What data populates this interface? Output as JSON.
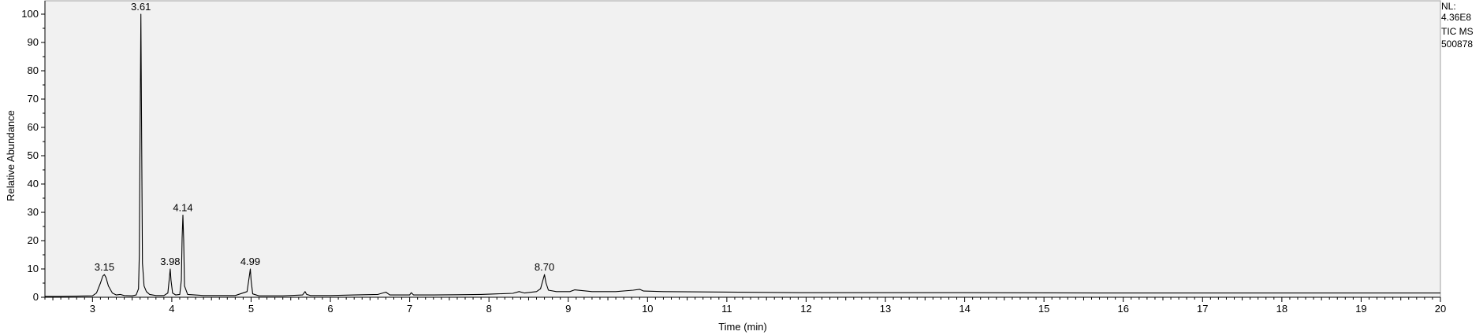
{
  "chart_data": {
    "type": "line",
    "title": "",
    "xlabel": "Time (min)",
    "ylabel": "Relative Abundance",
    "xlim": [
      2.4,
      20
    ],
    "ylim": [
      0,
      100
    ],
    "x_ticks": [
      3,
      4,
      5,
      6,
      7,
      8,
      9,
      10,
      11,
      12,
      13,
      14,
      15,
      16,
      17,
      18,
      19,
      20
    ],
    "x_tick_labels": [
      "3",
      "4",
      "5",
      "6",
      "7",
      "8",
      "9",
      "10",
      "11",
      "12",
      "13",
      "14",
      "15",
      "16",
      "17",
      "18",
      "19",
      "20"
    ],
    "y_ticks": [
      0,
      10,
      20,
      30,
      40,
      50,
      60,
      70,
      80,
      90,
      100
    ],
    "y_tick_labels": [
      "0",
      "10",
      "20",
      "30",
      "40",
      "50",
      "60",
      "70",
      "80",
      "90",
      "100"
    ],
    "info": {
      "nl_label": "NL:",
      "nl_value": "4.36E8",
      "trace_label": "TIC  MS",
      "sample_id": "500878"
    },
    "peaks": [
      {
        "label": "3.15",
        "x": 3.15,
        "y": 8
      },
      {
        "label": "3.61",
        "x": 3.61,
        "y": 100
      },
      {
        "label": "3.98",
        "x": 3.98,
        "y": 10
      },
      {
        "label": "4.14",
        "x": 4.14,
        "y": 29
      },
      {
        "label": "4.99",
        "x": 4.99,
        "y": 10
      },
      {
        "label": "8.70",
        "x": 8.7,
        "y": 8
      }
    ],
    "series": [
      {
        "name": "TIC MS",
        "x": [
          2.4,
          2.6,
          2.8,
          3.0,
          3.05,
          3.1,
          3.13,
          3.15,
          3.17,
          3.2,
          3.25,
          3.3,
          3.35,
          3.4,
          3.5,
          3.55,
          3.58,
          3.59,
          3.6,
          3.61,
          3.62,
          3.63,
          3.65,
          3.68,
          3.72,
          3.8,
          3.9,
          3.95,
          3.97,
          3.98,
          3.99,
          4.01,
          4.05,
          4.1,
          4.12,
          4.13,
          4.14,
          4.15,
          4.16,
          4.2,
          4.4,
          4.6,
          4.8,
          4.95,
          4.98,
          4.99,
          5.0,
          5.02,
          5.1,
          5.4,
          5.65,
          5.68,
          5.7,
          5.75,
          6.0,
          6.3,
          6.6,
          6.7,
          6.75,
          7.0,
          7.02,
          7.05,
          7.3,
          7.6,
          7.9,
          8.1,
          8.3,
          8.38,
          8.45,
          8.6,
          8.65,
          8.68,
          8.7,
          8.72,
          8.75,
          8.85,
          9.02,
          9.08,
          9.3,
          9.6,
          9.82,
          9.9,
          9.95,
          10.2,
          12.0,
          14.0,
          16.0,
          18.0,
          20.0
        ],
        "y": [
          0.3,
          0.3,
          0.4,
          0.5,
          1.5,
          5,
          7.5,
          8,
          7,
          4,
          1.5,
          0.8,
          1,
          0.6,
          0.5,
          0.8,
          3,
          15,
          60,
          100,
          55,
          12,
          4,
          2,
          1,
          0.6,
          0.6,
          1.5,
          7,
          10,
          6,
          1.5,
          0.8,
          1,
          6,
          21,
          29,
          20,
          4,
          1,
          0.6,
          0.6,
          0.6,
          2,
          8,
          10,
          6,
          1.2,
          0.5,
          0.5,
          0.8,
          2,
          1,
          0.6,
          0.6,
          0.8,
          1,
          1.8,
          0.8,
          0.8,
          1.6,
          0.8,
          0.8,
          0.9,
          1.0,
          1.2,
          1.4,
          2,
          1.5,
          2,
          3,
          6,
          8,
          5,
          2.5,
          2,
          2,
          2.6,
          2,
          2,
          2.5,
          2.8,
          2.2,
          2,
          1.6,
          1.6,
          1.5,
          1.5,
          1.5
        ]
      }
    ]
  }
}
